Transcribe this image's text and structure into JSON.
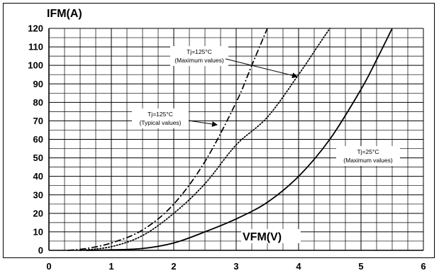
{
  "chart_data": {
    "type": "line",
    "xlabel": "VFM(V)",
    "ylabel": "IFM(A)",
    "xlim": [
      0,
      6
    ],
    "ylim": [
      0,
      120
    ],
    "x_ticks": [
      0,
      1,
      2,
      3,
      4,
      5,
      6
    ],
    "y_ticks": [
      0,
      10,
      20,
      30,
      40,
      50,
      60,
      70,
      80,
      90,
      100,
      110,
      120
    ],
    "x_minor_step": 0.25,
    "y_minor_step": 5,
    "grid": true,
    "series": [
      {
        "style": "dashdot",
        "points": [
          [
            0.3,
            0
          ],
          [
            0.6,
            1
          ],
          [
            1.0,
            4
          ],
          [
            1.5,
            11
          ],
          [
            2.0,
            25
          ],
          [
            2.5,
            48
          ],
          [
            3.0,
            80
          ],
          [
            3.25,
            100
          ],
          [
            3.5,
            120
          ]
        ]
      },
      {
        "style": "dotted",
        "points": [
          [
            0.5,
            0
          ],
          [
            1.0,
            2
          ],
          [
            1.5,
            8
          ],
          [
            2.0,
            20
          ],
          [
            2.5,
            36
          ],
          [
            3.0,
            57
          ],
          [
            3.5,
            72
          ],
          [
            4.0,
            95
          ],
          [
            4.3,
            110
          ],
          [
            4.5,
            120
          ]
        ]
      },
      {
        "style": "solid",
        "points": [
          [
            0.6,
            0
          ],
          [
            1.0,
            0.3
          ],
          [
            1.5,
            1
          ],
          [
            2.0,
            4
          ],
          [
            2.5,
            10
          ],
          [
            3.0,
            17
          ],
          [
            3.5,
            26
          ],
          [
            4.0,
            40
          ],
          [
            4.5,
            60
          ],
          [
            5.0,
            87
          ],
          [
            5.25,
            103
          ],
          [
            5.5,
            120
          ]
        ]
      }
    ],
    "annotations": [
      {
        "lines": [
          "Tj=125°C",
          "(Maximum values)"
        ]
      },
      {
        "lines": [
          "Tj=125°C",
          "(Typical values)"
        ]
      },
      {
        "lines": [
          "Tj=25°C",
          "(Maximum values)"
        ]
      }
    ]
  }
}
